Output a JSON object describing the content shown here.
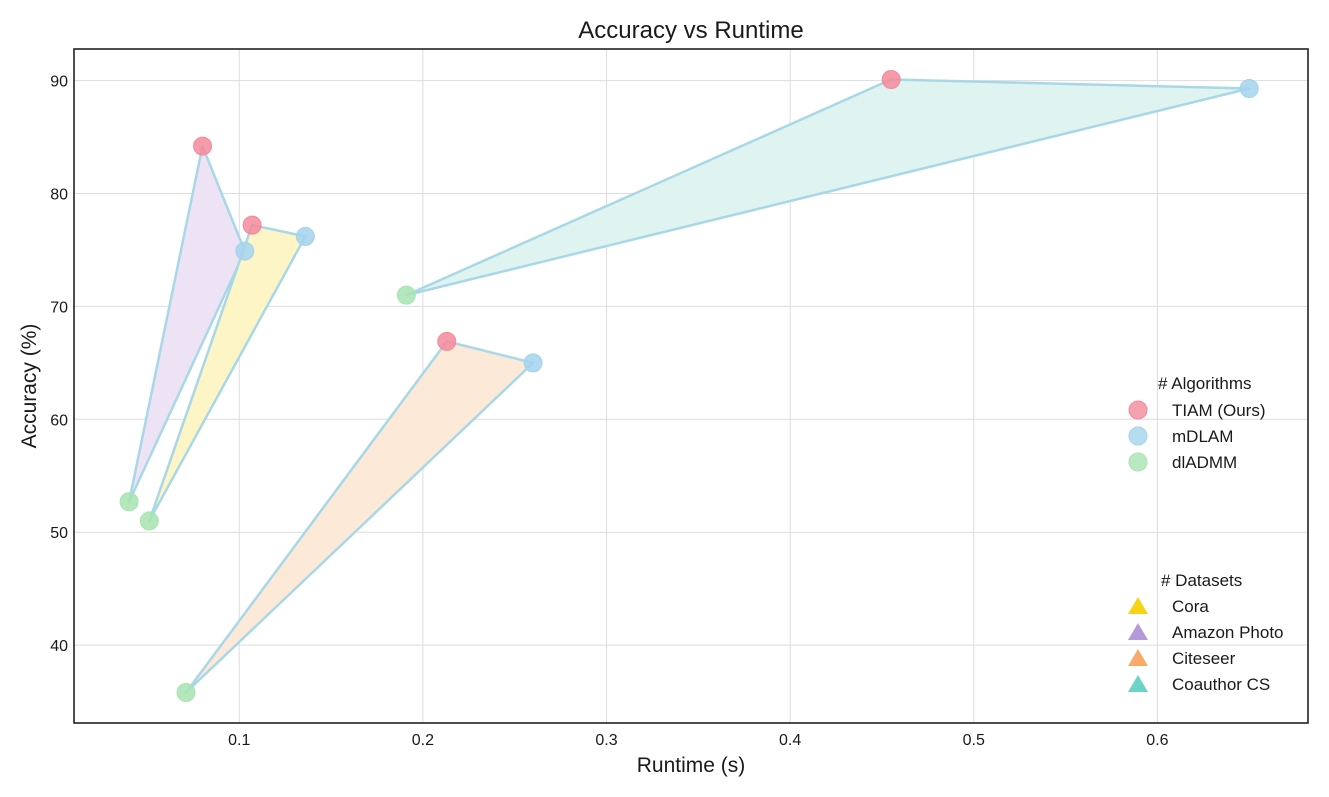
{
  "chart_data": {
    "type": "scatter",
    "title": "Accuracy vs Runtime",
    "xlabel": "Runtime (s)",
    "ylabel": "Accuracy (%)",
    "xlim": [
      0.01,
      0.682
    ],
    "ylim": [
      33.1,
      92.8
    ],
    "xticks": [
      0.1,
      0.2,
      0.3,
      0.4,
      0.5,
      0.6
    ],
    "yticks": [
      40,
      50,
      60,
      70,
      80,
      90
    ],
    "grid": true,
    "algorithms_legend": {
      "title": "# Algorithms",
      "placement": "right",
      "items": [
        {
          "name": "TIAM (Ours)",
          "color": "#f4899b"
        },
        {
          "name": "mDLAM",
          "color": "#a3d3ee"
        },
        {
          "name": "dlADMM",
          "color": "#a8e3b1"
        }
      ]
    },
    "datasets_legend": {
      "title": "# Datasets",
      "placement": "bottom-right",
      "items": [
        {
          "name": "Cora",
          "color": "#f7d317"
        },
        {
          "name": "Amazon Photo",
          "color": "#b49ad8"
        },
        {
          "name": "Citeseer",
          "color": "#f9a968"
        },
        {
          "name": "Coauthor CS",
          "color": "#6dd3c6"
        }
      ]
    },
    "series": [
      {
        "dataset": "Amazon Photo",
        "fill": "#ede3f5",
        "points": [
          {
            "algorithm": "TIAM (Ours)",
            "x": 0.08,
            "y": 84.2
          },
          {
            "algorithm": "mDLAM",
            "x": 0.103,
            "y": 74.9
          },
          {
            "algorithm": "dlADMM",
            "x": 0.04,
            "y": 52.7
          }
        ]
      },
      {
        "dataset": "Cora",
        "fill": "#fdf5c5",
        "points": [
          {
            "algorithm": "TIAM (Ours)",
            "x": 0.107,
            "y": 77.2
          },
          {
            "algorithm": "mDLAM",
            "x": 0.136,
            "y": 76.2
          },
          {
            "algorithm": "dlADMM",
            "x": 0.051,
            "y": 51.0
          }
        ]
      },
      {
        "dataset": "Citeseer",
        "fill": "#fde9d8",
        "points": [
          {
            "algorithm": "TIAM (Ours)",
            "x": 0.213,
            "y": 66.9
          },
          {
            "algorithm": "mDLAM",
            "x": 0.26,
            "y": 65.0
          },
          {
            "algorithm": "dlADMM",
            "x": 0.071,
            "y": 35.8
          }
        ]
      },
      {
        "dataset": "Coauthor CS",
        "fill": "#dff4f0",
        "points": [
          {
            "algorithm": "TIAM (Ours)",
            "x": 0.455,
            "y": 90.1
          },
          {
            "algorithm": "mDLAM",
            "x": 0.65,
            "y": 89.3
          },
          {
            "algorithm": "dlADMM",
            "x": 0.191,
            "y": 71.0
          }
        ]
      }
    ],
    "edge_color": "#a8d8e8"
  }
}
